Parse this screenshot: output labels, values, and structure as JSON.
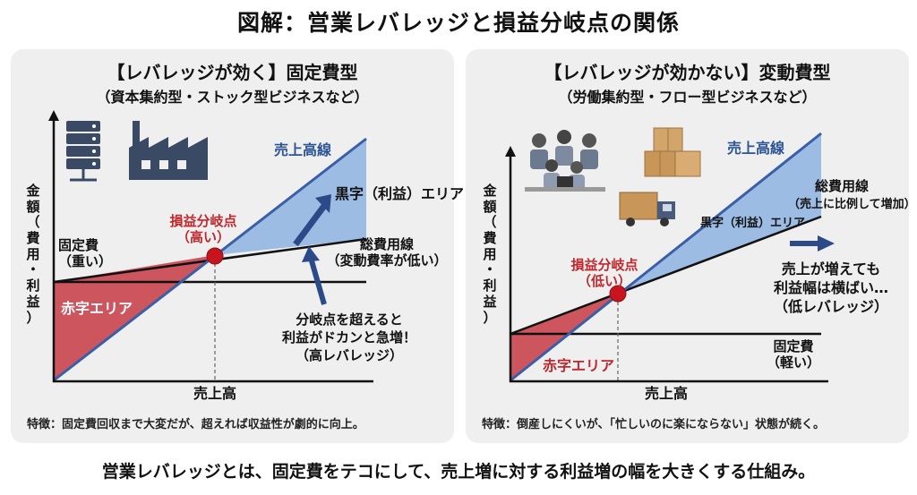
{
  "title": "図解：営業レバレッジと損益分岐点の関係",
  "left": {
    "title1": "【レバレッジが効く】固定費型",
    "title2": "（資本集約型・ストック型ビジネスなど）",
    "y_axis": "金額（費用・利益）",
    "x_axis": "売上高",
    "sales_line": "売上高線",
    "profit_area": "黒字（利益）エリア",
    "bep": "損益分岐点",
    "bep_sub": "（高い）",
    "fixed_cost": "固定費",
    "fixed_cost_sub": "（重い）",
    "total_cost": "総費用線",
    "total_cost_sub": "（変動費率が低い）",
    "loss_area": "赤字エリア",
    "callout1": "分岐点を超えると",
    "callout2": "利益がドカンと急増！",
    "callout3": "（高レバレッジ）",
    "feature": "特徴：固定費回収まで大変だが、超えれば収益性が劇的に向上。",
    "icons": [
      "server-icon",
      "factory-icon"
    ]
  },
  "right": {
    "title1": "【レバレッジが効かない】変動費型",
    "title2": "（労働集約型・フロー型ビジネスなど）",
    "y_axis": "金額（費用・利益）",
    "x_axis": "売上高",
    "sales_line": "売上高線",
    "profit_area": "黒字（利益）エリア",
    "bep": "損益分岐点",
    "bep_sub": "（低い）",
    "fixed_cost": "固定費",
    "fixed_cost_sub": "（軽い）",
    "total_cost": "総費用線",
    "total_cost_sub": "（売上に比例して増加）",
    "loss_area": "赤字エリア",
    "callout1": "売上が増えても",
    "callout2": "利益幅は横ばい…",
    "callout3": "（低レバレッジ）",
    "feature": "特徴：倒産しにくいが、「忙しいのに楽にならない」状態が続く。",
    "icons": [
      "office-workers-icon",
      "boxes-icon",
      "truck-icon"
    ]
  },
  "footer": "営業レバレッジとは、固定費をテコにして、売上増に対する利益増の幅を大きくする仕組み。",
  "colors": {
    "loss": "#c8444e",
    "profit": "#9dbce3",
    "sales_line": "#3a5fa8",
    "bep_dot": "#c8141e",
    "arrow": "#2c4a88"
  }
}
